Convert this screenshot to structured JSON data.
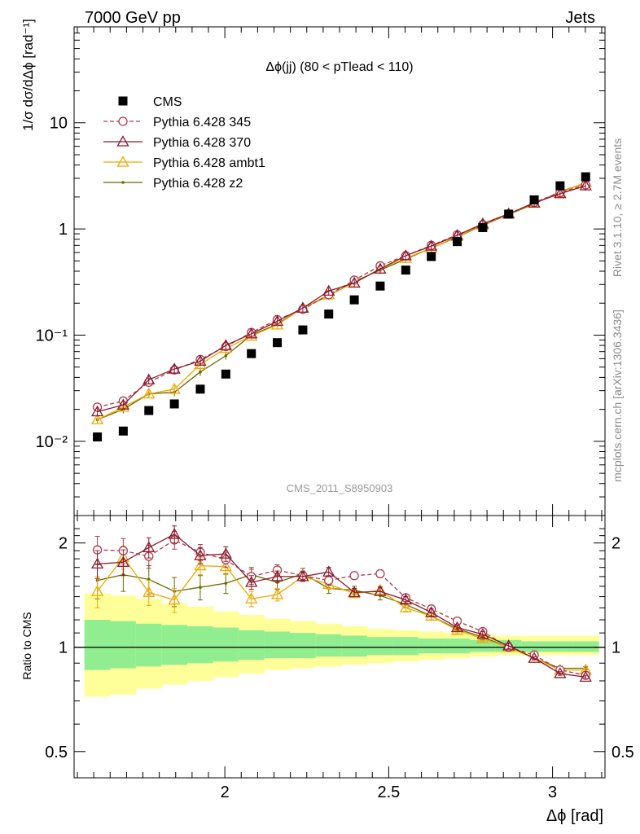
{
  "header": {
    "left": "7000 GeV pp",
    "right": "Jets"
  },
  "side_labels": {
    "rivet": "Rivet 3.1.10, ≥ 2.7M events",
    "mcplots": "mcplots.cern.ch [arXiv:1306.3436]"
  },
  "analysis_id": "CMS_2011_S8950903",
  "chart_data": [
    {
      "type": "scatter",
      "panel": "main",
      "title": "Δϕ(jj) (80 < pTlead <  110)",
      "ylabel": "1/σ dσ/dΔϕ [rad⁻¹]",
      "yscale": "log",
      "ylim": [
        0.002,
        80
      ],
      "xlim": [
        1.54,
        3.16
      ],
      "y_tick_labels": [
        "10⁻²",
        "10⁻¹",
        "1",
        "10"
      ],
      "legend_position": "top-left",
      "x": [
        1.611,
        1.69,
        1.768,
        1.846,
        1.925,
        2.003,
        2.081,
        2.16,
        2.238,
        2.317,
        2.395,
        2.474,
        2.552,
        2.63,
        2.709,
        2.787,
        2.866,
        2.944,
        3.023,
        3.101
      ],
      "series": [
        {
          "name": "CMS",
          "color": "#000000",
          "marker": "square",
          "values": [
            0.011,
            0.0125,
            0.0195,
            0.0225,
            0.031,
            0.043,
            0.067,
            0.085,
            0.112,
            0.158,
            0.215,
            0.29,
            0.41,
            0.55,
            0.76,
            1.03,
            1.38,
            1.88,
            2.55,
            3.1
          ]
        },
        {
          "name": "Pythia 6.428 345",
          "color": "#b0394f",
          "marker": "circle",
          "dashed": true,
          "values": [
            0.021,
            0.024,
            0.036,
            0.047,
            0.059,
            0.078,
            0.106,
            0.14,
            0.175,
            0.24,
            0.33,
            0.45,
            0.56,
            0.7,
            0.88,
            1.1,
            1.38,
            1.78,
            2.2,
            2.6
          ]
        },
        {
          "name": "Pythia 6.428 370",
          "color": "#8b1a2e",
          "marker": "triangle",
          "values": [
            0.019,
            0.022,
            0.038,
            0.048,
            0.057,
            0.08,
            0.103,
            0.135,
            0.18,
            0.26,
            0.31,
            0.42,
            0.56,
            0.69,
            0.87,
            1.12,
            1.39,
            1.76,
            2.15,
            2.55
          ]
        },
        {
          "name": "Pythia 6.428 ambt1",
          "color": "#f0a800",
          "marker": "triangle",
          "values": [
            0.016,
            0.021,
            0.028,
            0.031,
            0.053,
            0.075,
            0.098,
            0.125,
            0.18,
            0.24,
            0.31,
            0.42,
            0.53,
            0.66,
            0.85,
            1.09,
            1.38,
            1.75,
            2.2,
            2.75
          ]
        },
        {
          "name": "Pythia 6.428 z2",
          "color": "#6b6b00",
          "marker": "dot",
          "values": [
            0.016,
            0.02,
            0.028,
            0.029,
            0.045,
            0.064,
            0.1,
            0.127,
            0.18,
            0.235,
            0.32,
            0.41,
            0.52,
            0.66,
            0.84,
            1.08,
            1.37,
            1.72,
            2.25,
            2.7
          ]
        }
      ]
    },
    {
      "type": "line",
      "panel": "ratio",
      "ylabel": "Ratio to CMS",
      "xlabel": "Δϕ [rad]",
      "yscale": "log",
      "ylim": [
        0.42,
        2.4
      ],
      "xlim": [
        1.54,
        3.16
      ],
      "y_ticks": [
        0.5,
        1,
        2
      ],
      "y_tick_labels": [
        "0.5",
        "1",
        "2"
      ],
      "x_ticks": [
        2,
        2.5,
        3
      ],
      "x_tick_labels": [
        "2",
        "2.5",
        "3"
      ],
      "x": [
        1.611,
        1.69,
        1.768,
        1.846,
        1.925,
        2.003,
        2.081,
        2.16,
        2.238,
        2.317,
        2.395,
        2.474,
        2.552,
        2.63,
        2.709,
        2.787,
        2.866,
        2.944,
        3.023,
        3.101
      ],
      "bands": {
        "inner_color": "#90ee90",
        "outer_color": "#ffff99",
        "inner_up": [
          1.2,
          1.19,
          1.17,
          1.16,
          1.15,
          1.14,
          1.12,
          1.11,
          1.1,
          1.09,
          1.08,
          1.07,
          1.07,
          1.06,
          1.06,
          1.05,
          1.05,
          1.04,
          1.04,
          1.04
        ],
        "inner_low": [
          0.86,
          0.87,
          0.88,
          0.89,
          0.9,
          0.91,
          0.92,
          0.93,
          0.93,
          0.94,
          0.94,
          0.95,
          0.95,
          0.96,
          0.96,
          0.97,
          0.97,
          0.97,
          0.97,
          0.97
        ],
        "outer_up": [
          1.43,
          1.41,
          1.38,
          1.34,
          1.31,
          1.27,
          1.24,
          1.21,
          1.19,
          1.17,
          1.15,
          1.13,
          1.12,
          1.11,
          1.1,
          1.09,
          1.08,
          1.08,
          1.08,
          1.08
        ],
        "outer_low": [
          0.72,
          0.73,
          0.76,
          0.78,
          0.8,
          0.82,
          0.84,
          0.86,
          0.87,
          0.88,
          0.89,
          0.9,
          0.91,
          0.92,
          0.93,
          0.94,
          0.95,
          0.95,
          0.95,
          0.95
        ]
      },
      "series": [
        {
          "name": "Pythia 6.428 345",
          "color": "#b0394f",
          "marker": "circle",
          "dashed": true,
          "values": [
            1.91,
            1.9,
            1.83,
            2.04,
            1.88,
            1.79,
            1.6,
            1.67,
            1.61,
            1.56,
            1.61,
            1.63,
            1.39,
            1.29,
            1.19,
            1.11,
            1.0,
            0.95,
            0.86,
            0.83
          ],
          "err": [
            0.18,
            0.16,
            0.14,
            0.12,
            0.1,
            0.09,
            0.08,
            0.06,
            0.05,
            0.05,
            0.04,
            0.04,
            0.03,
            0.03,
            0.02,
            0.02,
            0.02,
            0.01,
            0.01,
            0.01
          ]
        },
        {
          "name": "Pythia 6.428 370",
          "color": "#8b1a2e",
          "marker": "triangle",
          "values": [
            1.74,
            1.76,
            1.94,
            2.12,
            1.84,
            1.86,
            1.54,
            1.6,
            1.6,
            1.65,
            1.44,
            1.45,
            1.37,
            1.26,
            1.14,
            1.09,
            1.01,
            0.93,
            0.84,
            0.82
          ],
          "err": [
            0.16,
            0.15,
            0.13,
            0.12,
            0.1,
            0.09,
            0.07,
            0.06,
            0.05,
            0.05,
            0.04,
            0.04,
            0.03,
            0.03,
            0.02,
            0.02,
            0.02,
            0.01,
            0.01,
            0.01
          ]
        },
        {
          "name": "Pythia 6.428 ambt1",
          "color": "#f0a800",
          "marker": "triangle",
          "values": [
            1.45,
            1.82,
            1.44,
            1.37,
            1.72,
            1.71,
            1.38,
            1.42,
            1.6,
            1.52,
            1.43,
            1.46,
            1.3,
            1.23,
            1.12,
            1.06,
            1.0,
            0.93,
            0.86,
            0.86
          ],
          "err": [
            0.15,
            0.14,
            0.12,
            0.11,
            0.1,
            0.09,
            0.07,
            0.06,
            0.05,
            0.05,
            0.04,
            0.04,
            0.03,
            0.03,
            0.02,
            0.02,
            0.02,
            0.01,
            0.01,
            0.01
          ]
        },
        {
          "name": "Pythia 6.428 z2",
          "color": "#6b6b00",
          "marker": "dot",
          "values": [
            1.56,
            1.62,
            1.57,
            1.45,
            1.49,
            1.53,
            1.62,
            1.54,
            1.63,
            1.48,
            1.46,
            1.41,
            1.33,
            1.23,
            1.13,
            1.07,
            1.0,
            0.93,
            0.87,
            0.87
          ],
          "err": [
            0.18,
            0.17,
            0.15,
            0.14,
            0.12,
            0.1,
            0.08,
            0.07,
            0.06,
            0.05,
            0.04,
            0.04,
            0.03,
            0.03,
            0.02,
            0.02,
            0.02,
            0.01,
            0.01,
            0.01
          ]
        }
      ]
    }
  ]
}
